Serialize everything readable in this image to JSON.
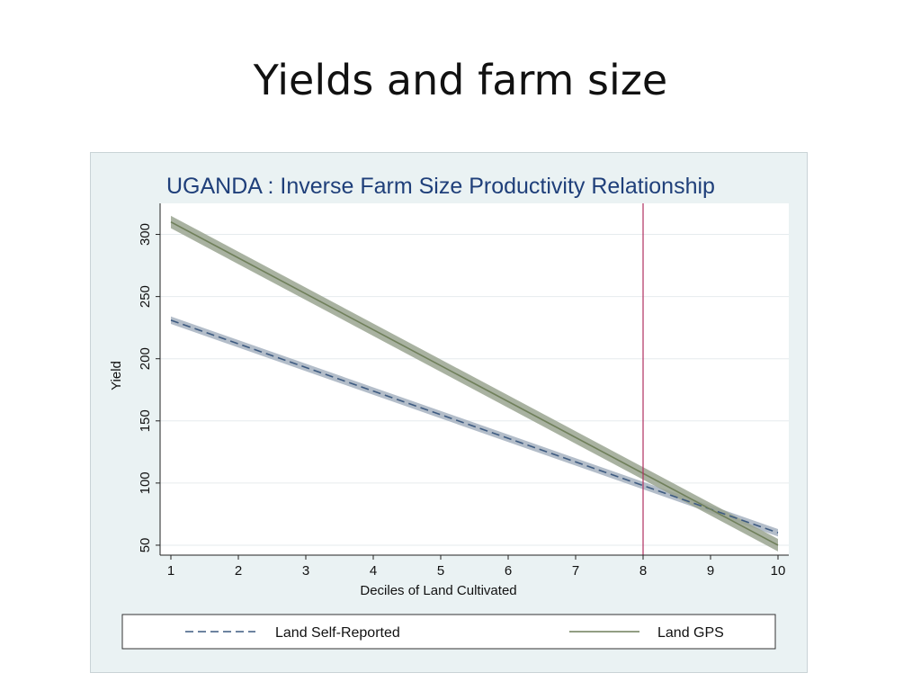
{
  "slide": {
    "title": "Yields and farm size"
  },
  "chart_data": {
    "type": "line",
    "title": "UGANDA : Inverse Farm Size Productivity Relationship",
    "xlabel": "Deciles of Land Cultivated",
    "ylabel": "Yield",
    "xlim": [
      1,
      10
    ],
    "ylim": [
      42,
      325
    ],
    "x_ticks": [
      1,
      2,
      3,
      4,
      5,
      6,
      7,
      8,
      9,
      10
    ],
    "y_ticks": [
      50,
      100,
      150,
      200,
      250,
      300
    ],
    "grid": true,
    "reference_line": {
      "x": 8,
      "color": "#b03060"
    },
    "series": [
      {
        "name": "Land Self-Reported",
        "style": "dashed",
        "color": "#3d5a80",
        "band_color": "#a6b2bf",
        "x": [
          1,
          10
        ],
        "y": [
          231,
          60
        ],
        "ci_halfwidth": 3
      },
      {
        "name": "Land GPS",
        "style": "solid",
        "color": "#6f7f5a",
        "band_color": "#9aa590",
        "x": [
          1,
          10
        ],
        "y": [
          310,
          50
        ],
        "ci_halfwidth": 5
      }
    ],
    "legend": {
      "position": "bottom"
    },
    "colors": {
      "plot_background": "#ffffff",
      "figure_background": "#eaf2f3",
      "grid": "#e6ebee"
    }
  }
}
